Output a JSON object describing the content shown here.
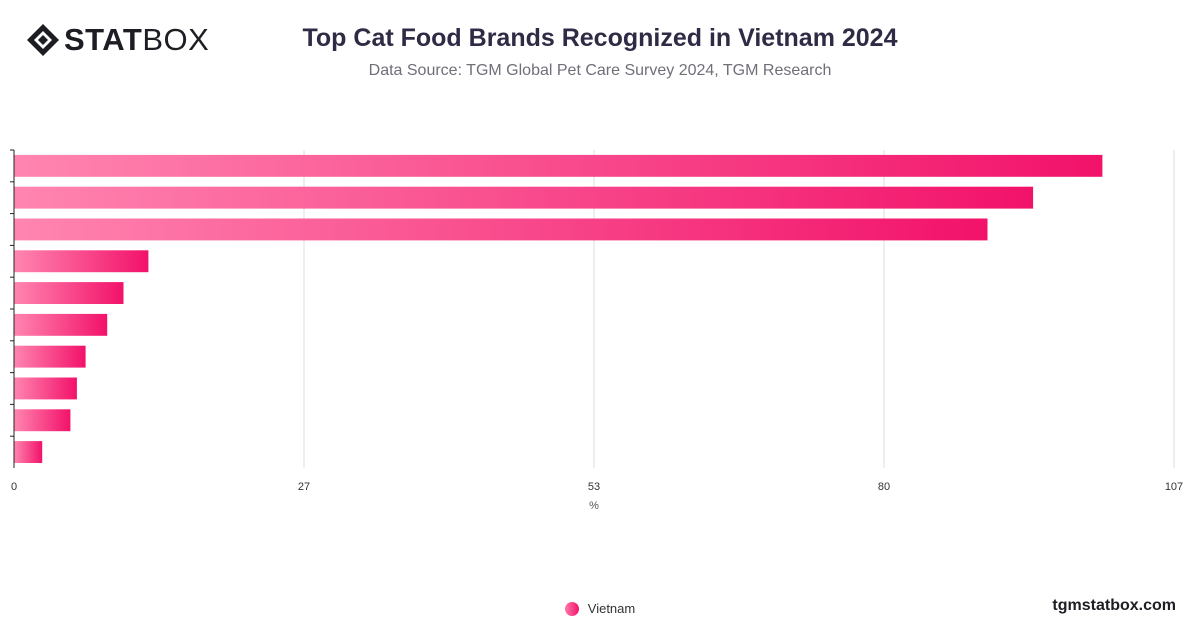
{
  "brand": {
    "logo_bold": "STAT",
    "logo_light": "BOX",
    "url": "tgmstatbox.com"
  },
  "chart_data": {
    "type": "bar",
    "orientation": "horizontal",
    "title": "Top Cat Food Brands Recognized in Vietnam 2024",
    "subtitle": "Data Source: TGM Global Pet Care Survey 2024, TGM Research",
    "xlabel": "%",
    "ylabel": "",
    "xlim": [
      0,
      107
    ],
    "x_ticks": [
      "0",
      "27",
      "53",
      "80",
      "107"
    ],
    "grid": true,
    "legend_position": "bottom-center",
    "series": [
      {
        "name": "Vietnam",
        "values": [
          100.4,
          94.0,
          89.8,
          12.4,
          10.1,
          8.6,
          6.6,
          5.8,
          5.2,
          2.6
        ]
      }
    ],
    "colors": {
      "bar_start": "#ff85b0",
      "bar_end": "#f2126a",
      "grid": "#dcdcdc",
      "axis": "#222222"
    }
  }
}
